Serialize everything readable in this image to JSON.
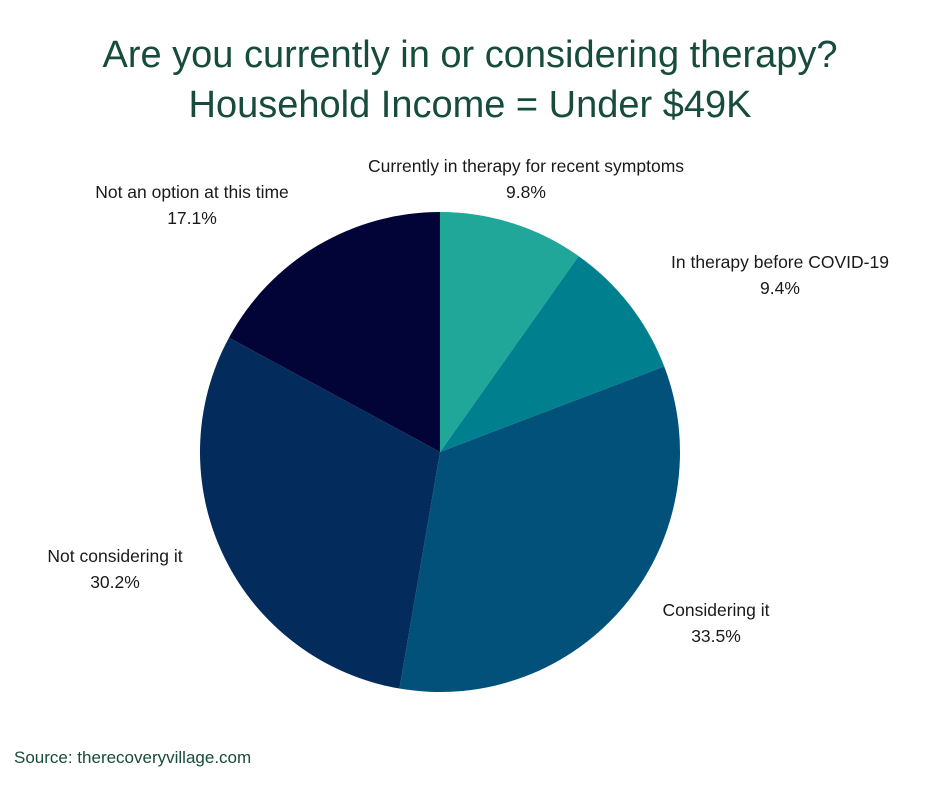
{
  "chart_data": {
    "type": "pie",
    "title": "Are you currently in or considering therapy?",
    "subtitle": "Household Income = Under $49K",
    "slices": [
      {
        "label": "Currently in therapy for recent symptoms",
        "value": 9.8,
        "display": "9.8%",
        "color": "#20a79a"
      },
      {
        "label": "In therapy before COVID-19",
        "value": 9.4,
        "display": "9.4%",
        "color": "#00808e"
      },
      {
        "label": "Considering it",
        "value": 33.5,
        "display": "33.5%",
        "color": "#02517b"
      },
      {
        "label": "Not considering it",
        "value": 30.2,
        "display": "30.2%",
        "color": "#032c5d"
      },
      {
        "label": "Not an option at this time",
        "value": 17.1,
        "display": "17.1%",
        "color": "#020438"
      }
    ]
  },
  "source": "Source: therecoveryvillage.com"
}
